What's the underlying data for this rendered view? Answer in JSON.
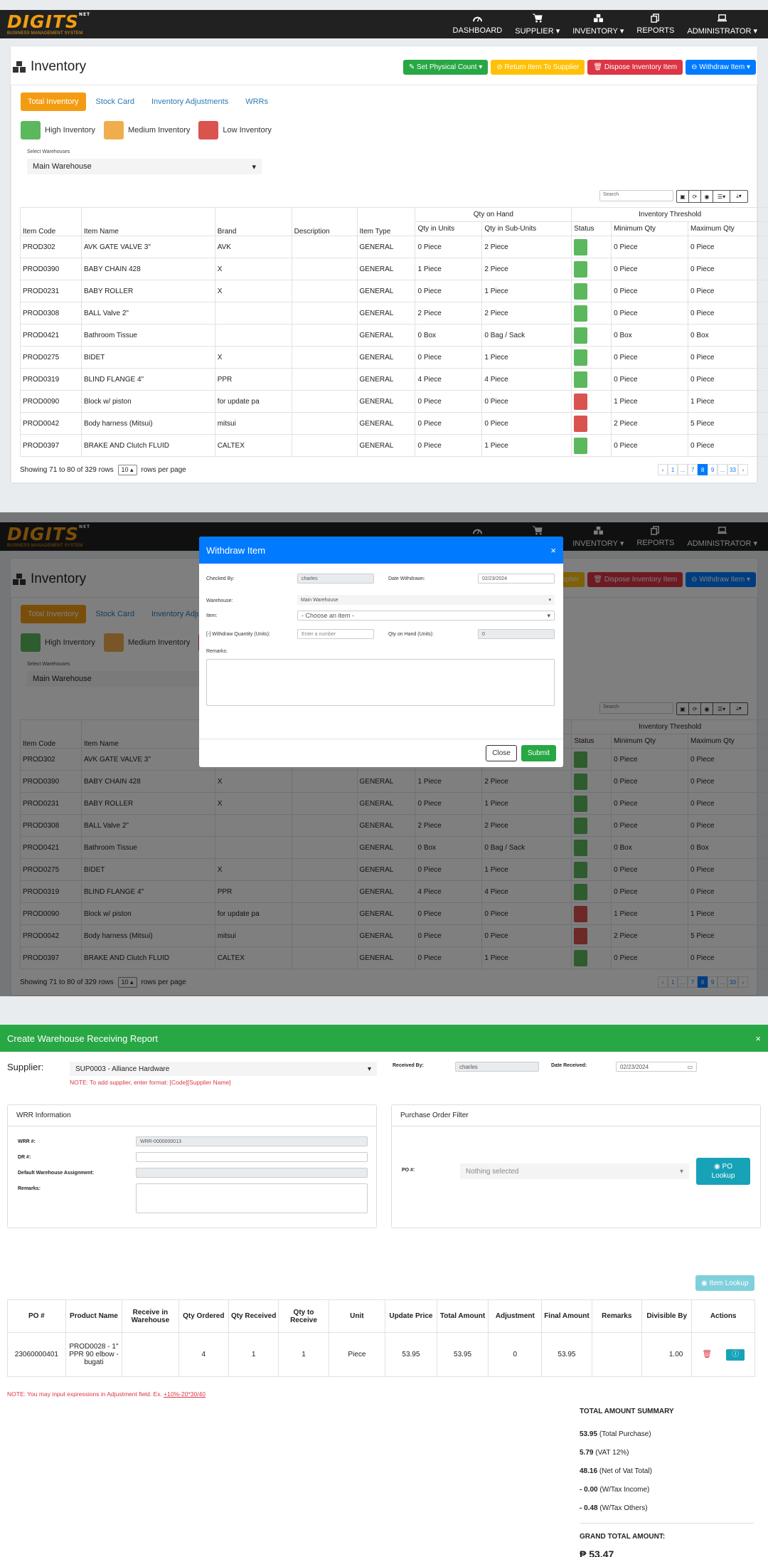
{
  "nav": {
    "logo_main": "DIGITS",
    "logo_sup": "NET",
    "logo_sub": "BUSINESS MANAGEMENT SYSTEM",
    "items": [
      {
        "label": "DASHBOARD",
        "icon": "dashboard-icon"
      },
      {
        "label": "SUPPLIER ▾",
        "icon": "cart-icon"
      },
      {
        "label": "INVENTORY ▾",
        "icon": "boxes-icon"
      },
      {
        "label": "REPORTS",
        "icon": "copy-icon"
      },
      {
        "label": "ADMINISTRATOR ▾",
        "icon": "laptop-icon"
      }
    ]
  },
  "page": {
    "title": "Inventory",
    "buttons": {
      "set_physical": "Set Physical Count ▾",
      "return_supplier": "Return Item To Supplier",
      "dispose": "Dispose Inventory Item",
      "withdraw": "Withdraw Item ▾"
    },
    "tabs": [
      "Total Inventory",
      "Stock Card",
      "Inventory Adjustments",
      "WRRs"
    ],
    "legend": {
      "high": "High Inventory",
      "medium": "Medium Inventory",
      "low": "Low Inventory"
    },
    "warehouse_label": "Select Warehouses",
    "warehouse_value": "Main Warehouse",
    "search_placeholder": "Search"
  },
  "table": {
    "group_qty": "Qty on Hand",
    "group_threshold": "Inventory Threshold",
    "headers": [
      "Item Code",
      "Item Name",
      "Brand",
      "Description",
      "Item Type",
      "Qty in Units",
      "Qty in Sub-Units",
      "Status",
      "Minimum Qty",
      "Maximum Qty"
    ],
    "rows": [
      {
        "code": "PROD302",
        "name": "AVK GATE VALVE 3\"",
        "brand": "AVK",
        "desc": "",
        "type": "GENERAL",
        "units": "0 Piece",
        "sub": "2 Piece",
        "status": "high",
        "min": "0 Piece",
        "max": "0 Piece"
      },
      {
        "code": "PROD0390",
        "name": "BABY CHAIN 428",
        "brand": "X",
        "desc": "",
        "type": "GENERAL",
        "units": "1 Piece",
        "sub": "2 Piece",
        "status": "high",
        "min": "0 Piece",
        "max": "0 Piece"
      },
      {
        "code": "PROD0231",
        "name": "BABY ROLLER",
        "brand": "X",
        "desc": "",
        "type": "GENERAL",
        "units": "0 Piece",
        "sub": "1 Piece",
        "status": "high",
        "min": "0 Piece",
        "max": "0 Piece"
      },
      {
        "code": "PROD0308",
        "name": "BALL Valve 2\"",
        "brand": "",
        "desc": "",
        "type": "GENERAL",
        "units": "2 Piece",
        "sub": "2 Piece",
        "status": "high",
        "min": "0 Piece",
        "max": "0 Piece"
      },
      {
        "code": "PROD0421",
        "name": "Bathroom Tissue",
        "brand": "",
        "desc": "",
        "type": "GENERAL",
        "units": "0 Box",
        "sub": "0 Bag / Sack",
        "status": "high",
        "min": "0 Box",
        "max": "0 Box"
      },
      {
        "code": "PROD0275",
        "name": "BIDET",
        "brand": "X",
        "desc": "",
        "type": "GENERAL",
        "units": "0 Piece",
        "sub": "1 Piece",
        "status": "high",
        "min": "0 Piece",
        "max": "0 Piece"
      },
      {
        "code": "PROD0319",
        "name": "BLIND FLANGE 4\"",
        "brand": "PPR",
        "desc": "",
        "type": "GENERAL",
        "units": "4 Piece",
        "sub": "4 Piece",
        "status": "high",
        "min": "0 Piece",
        "max": "0 Piece"
      },
      {
        "code": "PROD0090",
        "name": "Block w/ piston",
        "brand": "for update pa",
        "desc": "",
        "type": "GENERAL",
        "units": "0 Piece",
        "sub": "0 Piece",
        "status": "low",
        "min": "1 Piece",
        "max": "1 Piece"
      },
      {
        "code": "PROD0042",
        "name": "Body harness (Mitsui)",
        "brand": "mitsui",
        "desc": "",
        "type": "GENERAL",
        "units": "0 Piece",
        "sub": "0 Piece",
        "status": "low",
        "min": "2 Piece",
        "max": "5 Piece"
      },
      {
        "code": "PROD0397",
        "name": "BRAKE AND Clutch FLUID",
        "brand": "CALTEX",
        "desc": "",
        "type": "GENERAL",
        "units": "0 Piece",
        "sub": "1 Piece",
        "status": "high",
        "min": "0 Piece",
        "max": "0 Piece"
      }
    ],
    "showing": "Showing 71 to 80 of 329 rows",
    "page_size": "10 ▴",
    "per_page": "rows per page",
    "pages": [
      "‹",
      "1",
      "...",
      "7",
      "8",
      "9",
      "...",
      "33",
      "›"
    ],
    "active_page": "8"
  },
  "withdraw_modal": {
    "title": "Withdraw Item",
    "close_x": "×",
    "checked_by_label": "Checked By:",
    "checked_by_value": "charles",
    "date_label": "Date Withdrawn:",
    "date_value": "02/23/2024",
    "warehouse_label": "Warehouse:",
    "warehouse_value": "Main Warehouse",
    "item_label": "Item:",
    "item_placeholder": "- Choose an item -",
    "qty_label": "[-] Withdraw Quantity (Units):",
    "qty_placeholder": "Enter a number",
    "onhand_label": "Qty on Hand (Units):",
    "onhand_value": "0",
    "remarks_label": "Remarks:",
    "close_btn": "Close",
    "submit_btn": "Submit"
  },
  "wrr": {
    "title": "Create Warehouse Receiving Report",
    "close_x": "×",
    "supplier_label": "Supplier:",
    "supplier_value": "SUP0003 - Alliance Hardware",
    "supplier_note": "NOTE: To add supplier, enter format: [Code][Supplier Name]",
    "received_by_label": "Received By:",
    "received_by_value": "charles",
    "date_label": "Date Received:",
    "date_value": "02/23/2024",
    "info_title": "WRR Information",
    "wrr_no_label": "WRR #:",
    "wrr_no_value": "WRR-0000000013",
    "dr_label": "DR #:",
    "dwa_label": "Default Warehouse Assignment:",
    "remarks_label": "Remarks:",
    "po_filter_title": "Purchase Order Filter",
    "po_label": "PO #:",
    "po_placeholder": "Nothing selected",
    "po_lookup": "PO Lookup",
    "item_lookup": "Item Lookup",
    "headers": [
      "PO #",
      "Product Name",
      "Receive in Warehouse",
      "Qty Ordered",
      "Qty Received",
      "Qty to Receive",
      "Unit",
      "Update Price",
      "Total Amount",
      "Adjustment",
      "Final Amount",
      "Remarks",
      "Divisible By",
      "Actions"
    ],
    "row": {
      "po": "23060000401",
      "product": "PROD0028 - 1\" PPR 90 elbow - bugati",
      "warehouse": "",
      "ordered": "4",
      "received": "1",
      "to_receive": "1",
      "unit": "Piece",
      "price": "53.95",
      "total": "53.95",
      "adjustment": "0",
      "final": "53.95",
      "remarks": "",
      "divisible": "1.00"
    },
    "note_prefix": "NOTE: You may input expressions in Adjustment field. Ex. ",
    "note_example": "+10%-20*30/40",
    "summary_title": "TOTAL AMOUNT SUMMARY",
    "summary": [
      {
        "value": "53.95",
        "label": "(Total Purchase)"
      },
      {
        "value": "5.79",
        "label": "(VAT 12%)"
      },
      {
        "value": "48.16",
        "label": "(Net of Vat Total)"
      },
      {
        "value": "- 0.00",
        "label": "(W/Tax Income)"
      },
      {
        "value": "- 0.48",
        "label": "(W/Tax Others)"
      }
    ],
    "grand_label": "GRAND TOTAL AMOUNT:",
    "grand_value": "₱ 53.47"
  },
  "colors": {
    "high": "#5cb85c",
    "medium": "#f0ad4e",
    "low": "#d9534f",
    "accent": "#f39c12",
    "primary": "#007bff",
    "success": "#28a745"
  }
}
